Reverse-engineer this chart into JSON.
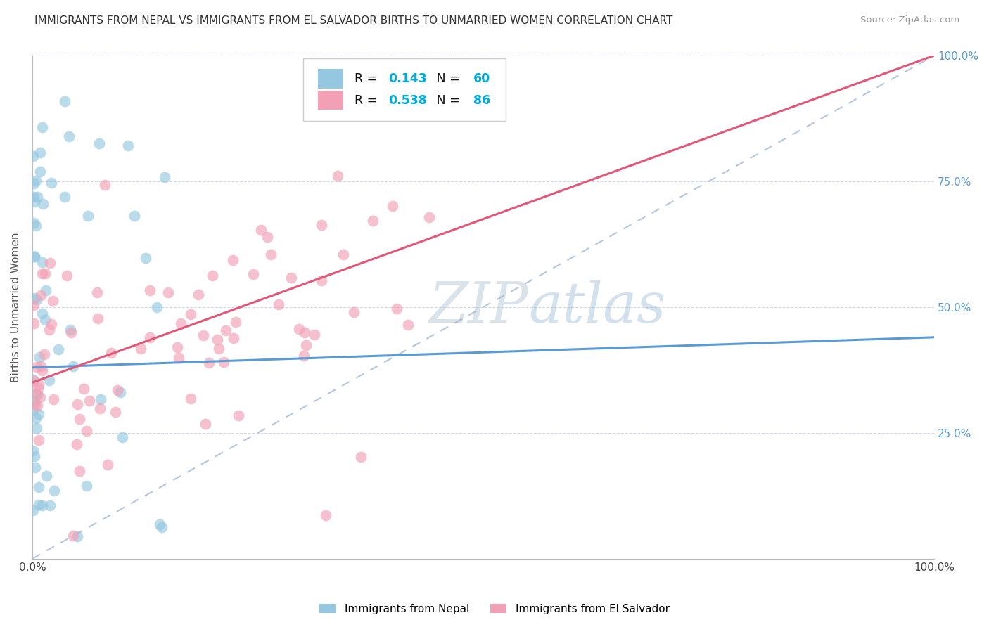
{
  "title": "IMMIGRANTS FROM NEPAL VS IMMIGRANTS FROM EL SALVADOR BIRTHS TO UNMARRIED WOMEN CORRELATION CHART",
  "source": "Source: ZipAtlas.com",
  "ylabel": "Births to Unmarried Women",
  "xlim": [
    0.0,
    1.0
  ],
  "ylim": [
    0.0,
    1.0
  ],
  "nepal_R": 0.143,
  "nepal_N": 60,
  "salvador_R": 0.538,
  "salvador_N": 86,
  "nepal_color": "#95C8E0",
  "salvador_color": "#F2A0B5",
  "nepal_line_color": "#5B9BD5",
  "salvador_line_color": "#E05878",
  "diagonal_color": "#A8BCD8",
  "watermark_zip": "ZIP",
  "watermark_atlas": "atlas",
  "background_color": "#FFFFFF",
  "grid_color": "#C8D4E8",
  "nepal_line_x0": 0.0,
  "nepal_line_y0": 0.38,
  "nepal_line_x1": 1.0,
  "nepal_line_y1": 0.44,
  "salvador_line_x0": 0.0,
  "salvador_line_y0": 0.35,
  "salvador_line_x1": 1.0,
  "salvador_line_y1": 1.0
}
